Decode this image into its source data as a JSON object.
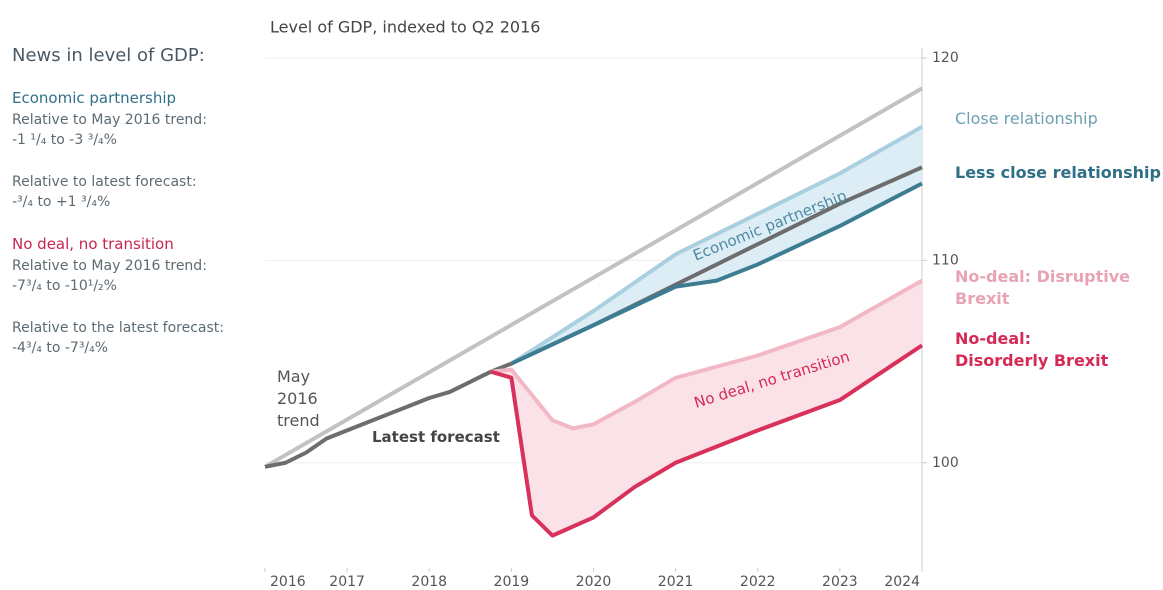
{
  "sidebar": {
    "heading": "News in level of GDP:",
    "sections": [
      {
        "title": "Economic partnership",
        "color": "#2f7189",
        "items": [
          {
            "label": "Relative to May 2016 trend:",
            "value": "-1 ¹/₄ to -3 ³/₄%"
          },
          {
            "label": "Relative to latest forecast:",
            "value": "-³/₄ to +1 ³/₄%"
          }
        ]
      },
      {
        "title": "No deal, no transition",
        "color": "#c8254f",
        "items": [
          {
            "label": "Relative to May 2016 trend:",
            "value": "-7³/₄ to -10¹/₂%"
          },
          {
            "label": "Relative to the latest forecast:",
            "value": "-4³/₄ to -7³/₄%"
          }
        ]
      }
    ]
  },
  "chart_data": {
    "type": "line",
    "title": "Level of GDP, indexed to Q2 2016",
    "xlim": [
      2016,
      2024
    ],
    "xticks": [
      2016,
      2017,
      2018,
      2019,
      2020,
      2021,
      2022,
      2023,
      2024
    ],
    "ylim": [
      94.8,
      120
    ],
    "yticks": [
      100,
      110,
      120
    ],
    "grid": true,
    "series": [
      {
        "name": "May 2016 trend",
        "color": "#c2c2c2",
        "label_color": "#555555",
        "x": [
          2016,
          2024
        ],
        "values": [
          99.8,
          118.5
        ]
      },
      {
        "name": "Latest forecast",
        "color": "#6d6d6d",
        "label_color": "#444444",
        "x": [
          2016,
          2016.25,
          2016.5,
          2016.75,
          2017,
          2017.25,
          2017.5,
          2017.75,
          2018,
          2018.25,
          2018.5,
          2018.75,
          2019,
          2020,
          2021,
          2022,
          2023,
          2024
        ],
        "values": [
          99.8,
          100.0,
          100.5,
          101.2,
          101.6,
          102.0,
          102.4,
          102.8,
          103.2,
          103.5,
          104.0,
          104.5,
          104.9,
          106.8,
          108.8,
          110.8,
          112.8,
          114.6
        ]
      },
      {
        "name": "Close relationship",
        "color": "#a9cfe0",
        "label_color": "#6e9fb3",
        "x": [
          2019,
          2020,
          2021,
          2022,
          2023,
          2024
        ],
        "values": [
          104.9,
          107.5,
          110.3,
          112.3,
          114.3,
          116.6
        ]
      },
      {
        "name": "Less close relationship",
        "color": "#3d7d93",
        "label_color": "#2e6f86",
        "x": [
          2019,
          2020,
          2021,
          2021.5,
          2022,
          2023,
          2024
        ],
        "values": [
          104.9,
          106.8,
          108.7,
          109.0,
          109.8,
          111.7,
          113.8
        ]
      },
      {
        "name": "No-deal: Disruptive Brexit",
        "color": "#f2b8c6",
        "label_color": "#e8a3b5",
        "x": [
          2018.75,
          2019,
          2019.5,
          2019.75,
          2020,
          2020.5,
          2021,
          2022,
          2023,
          2024
        ],
        "values": [
          104.5,
          104.6,
          102.1,
          101.7,
          101.9,
          103.0,
          104.2,
          105.3,
          106.7,
          109.0
        ]
      },
      {
        "name": "No-deal: Disorderly Brexit",
        "color": "#d8315b",
        "label_color": "#d42a55",
        "x": [
          2018.75,
          2019,
          2019.25,
          2019.5,
          2020,
          2020.5,
          2021,
          2022,
          2023,
          2024
        ],
        "values": [
          104.5,
          104.2,
          97.4,
          96.4,
          97.3,
          98.8,
          100.0,
          101.6,
          103.1,
          105.8
        ]
      }
    ],
    "shaded_bands": [
      {
        "series": [
          2,
          3
        ],
        "color": "#dcedf6",
        "label": "Economic partnership",
        "label_color": "#4f8aa2"
      },
      {
        "series": [
          4,
          5
        ],
        "color": "#fbe2e8",
        "label": "No deal, no transition",
        "label_color": "#d42a55"
      }
    ]
  }
}
